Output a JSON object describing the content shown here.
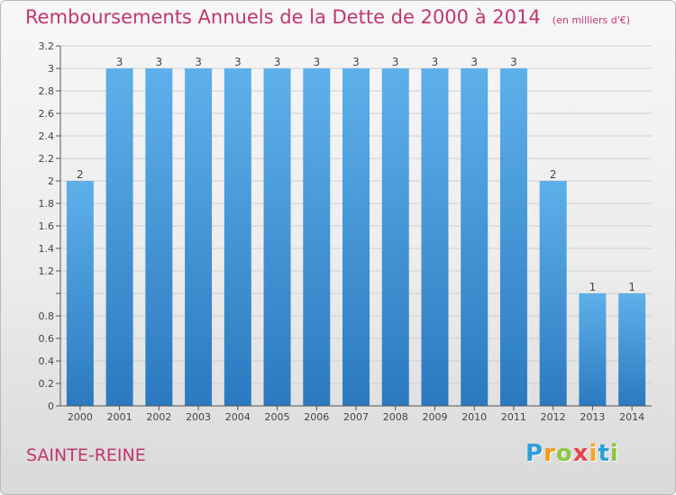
{
  "title": "Remboursements Annuels de la Dette de 2000 à 2014",
  "unit_note": "(en milliers d'€)",
  "commune": "SAINTE-REINE",
  "logo": {
    "letters": [
      "P",
      "r",
      "o",
      "x",
      "i",
      "t",
      "i"
    ],
    "colors": [
      "#2f9fd8",
      "#f39c12",
      "#8dc63f",
      "#e8424c",
      "#f5a623",
      "#2f9fd8",
      "#8dc63f"
    ]
  },
  "colors": {
    "title": "#c0366e",
    "bar_light": "#5eb0ea",
    "bar_dark": "#2b7ac0",
    "grid": "#cfcfcf",
    "axis": "#555555"
  },
  "chart_data": {
    "type": "bar",
    "categories": [
      "2000",
      "2001",
      "2002",
      "2003",
      "2004",
      "2005",
      "2006",
      "2007",
      "2008",
      "2009",
      "2010",
      "2011",
      "2012",
      "2013",
      "2014"
    ],
    "values": [
      2,
      3,
      3,
      3,
      3,
      3,
      3,
      3,
      3,
      3,
      3,
      3,
      2,
      1,
      1
    ],
    "data_labels": [
      "2",
      "3",
      "3",
      "3",
      "3",
      "3",
      "3",
      "3",
      "3",
      "3",
      "3",
      "3",
      "2",
      "1",
      "1"
    ],
    "ylim": [
      0,
      3.2
    ],
    "yticks": [
      0,
      0.2,
      0.4,
      0.6,
      0.8,
      1,
      1.2,
      1.4,
      1.6,
      1.8,
      2,
      2.2,
      2.4,
      2.6,
      2.8,
      3,
      3.2
    ],
    "ytick_labels": [
      "0",
      "0.2",
      "0.4",
      "0.6",
      "0.8",
      "",
      "1.2",
      "1.4",
      "1.6",
      "1.8",
      "2",
      "2.2",
      "2.4",
      "2.6",
      "2.8",
      "3",
      "3.2"
    ],
    "grid": true,
    "title": "Remboursements Annuels de la Dette de 2000 à 2014",
    "xlabel": "",
    "ylabel": ""
  }
}
